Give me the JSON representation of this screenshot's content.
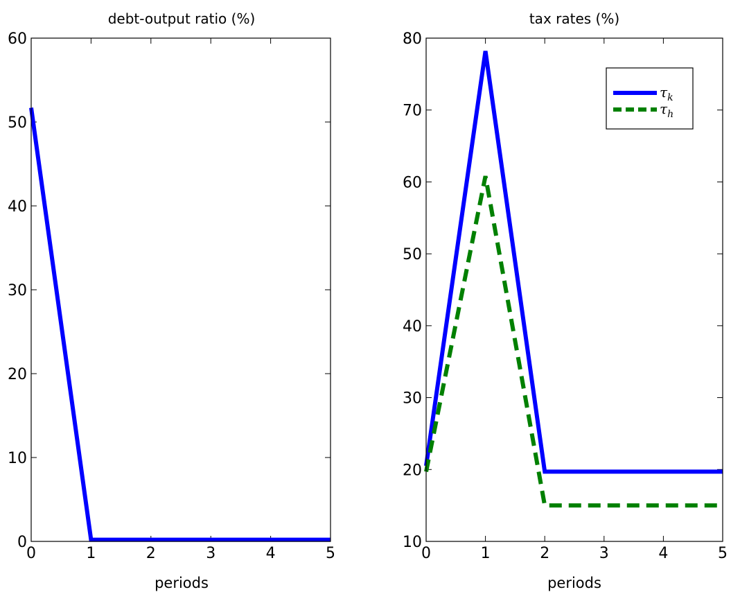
{
  "chart_data": [
    {
      "type": "line",
      "title": "debt-output ratio (%)",
      "xlabel": "periods",
      "ylabel": "",
      "xlim": [
        0,
        5
      ],
      "ylim": [
        0,
        60
      ],
      "xticks": [
        "0",
        "1",
        "2",
        "3",
        "4",
        "5"
      ],
      "yticks": [
        "0",
        "10",
        "20",
        "30",
        "40",
        "50",
        "60"
      ],
      "grid": false,
      "series": [
        {
          "x": [
            0,
            1,
            2,
            3,
            4,
            5
          ],
          "values": [
            51.7,
            0.2,
            0.2,
            0.2,
            0.2,
            0.2
          ],
          "color": "#0000ff",
          "style": "solid"
        }
      ]
    },
    {
      "type": "line",
      "title": "tax rates (%)",
      "xlabel": "periods",
      "ylabel": "",
      "xlim": [
        0,
        5
      ],
      "ylim": [
        10,
        80
      ],
      "xticks": [
        "0",
        "1",
        "2",
        "3",
        "4",
        "5"
      ],
      "yticks": [
        "10",
        "20",
        "30",
        "40",
        "50",
        "60",
        "70",
        "80"
      ],
      "grid": false,
      "legend_position": "top-right",
      "series": [
        {
          "name": "τ",
          "subscript": "k",
          "x": [
            0,
            1,
            2,
            3,
            4,
            5
          ],
          "values": [
            20.5,
            78.2,
            19.7,
            19.7,
            19.7,
            19.7
          ],
          "color": "#0000ff",
          "style": "solid"
        },
        {
          "name": "τ",
          "subscript": "h",
          "x": [
            0,
            1,
            2,
            3,
            4,
            5
          ],
          "values": [
            19.7,
            60.8,
            15.0,
            15.0,
            15.0,
            15.0
          ],
          "color": "#008000",
          "style": "dashed"
        }
      ]
    }
  ]
}
